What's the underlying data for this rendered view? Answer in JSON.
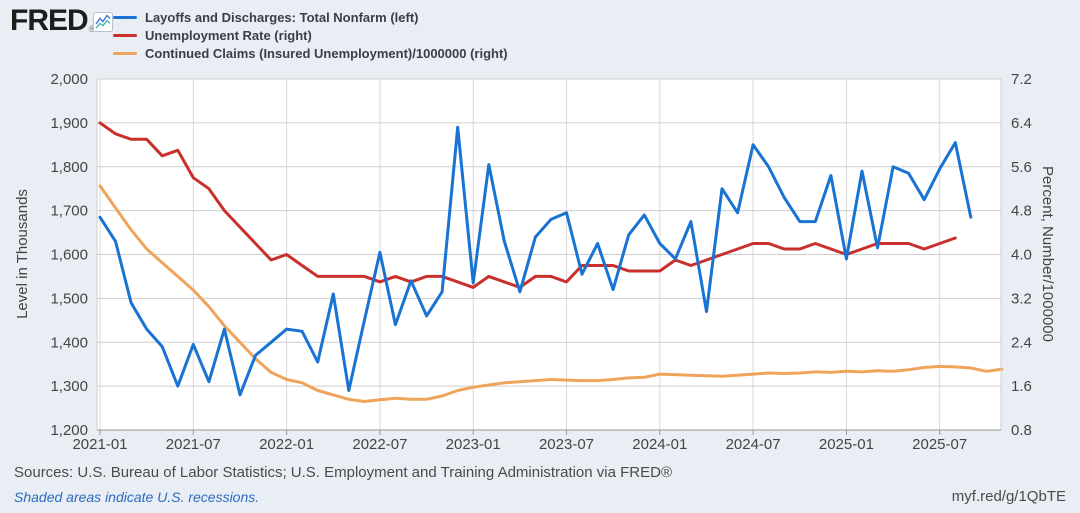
{
  "header": {
    "logo_text": "FRED",
    "logo_reg": "®",
    "logo_icon": "mini-line-chart-icon"
  },
  "chart_data": {
    "type": "line",
    "x_unit": "month",
    "x_start": "2021-01",
    "grid": true,
    "legend_position": "top",
    "x_tick_labels": [
      "2021-01",
      "2021-07",
      "2022-01",
      "2022-07",
      "2023-01",
      "2023-07",
      "2024-01",
      "2024-07",
      "2025-01",
      "2025-07"
    ],
    "left_axis": {
      "title": "Level in Thousands",
      "min": 1200,
      "max": 2000,
      "tick_labels": [
        "2,000",
        "1,900",
        "1,800",
        "1,700",
        "1,600",
        "1,500",
        "1,400",
        "1,300",
        "1,200"
      ]
    },
    "right_axis": {
      "title": "Percent, Number/1000000",
      "min": 0.8,
      "max": 7.2,
      "tick_labels": [
        "7.2",
        "6.4",
        "5.6",
        "4.8",
        "4.0",
        "3.2",
        "2.4",
        "1.6",
        "0.8"
      ]
    },
    "series": [
      {
        "id": "layoffs",
        "name": "Layoffs and Discharges: Total Nonfarm (left)",
        "axis": "left",
        "color": "#1873d3",
        "start": "2021-01",
        "values": [
          1685,
          1630,
          1490,
          1430,
          1390,
          1300,
          1395,
          1310,
          1430,
          1280,
          1370,
          1400,
          1430,
          1425,
          1355,
          1510,
          1290,
          1450,
          1605,
          1440,
          1540,
          1460,
          1515,
          1890,
          1535,
          1805,
          1630,
          1515,
          1640,
          1680,
          1695,
          1555,
          1625,
          1520,
          1645,
          1690,
          1625,
          1590,
          1675,
          1470,
          1750,
          1695,
          1850,
          1800,
          1730,
          1675,
          1675,
          1780,
          1590,
          1790,
          1615,
          1800,
          1785,
          1725,
          1795,
          1855,
          1685
        ]
      },
      {
        "id": "unemployment-rate",
        "name": "Unemployment Rate (right)",
        "axis": "right",
        "color": "#c9302c",
        "start": "2021-01",
        "values": [
          6.4,
          6.2,
          6.1,
          6.1,
          5.8,
          5.9,
          5.4,
          5.2,
          4.8,
          4.5,
          4.2,
          3.9,
          4.0,
          3.8,
          3.6,
          3.6,
          3.6,
          3.6,
          3.5,
          3.6,
          3.5,
          3.6,
          3.6,
          3.5,
          3.4,
          3.6,
          3.5,
          3.4,
          3.6,
          3.6,
          3.5,
          3.8,
          3.8,
          3.8,
          3.7,
          3.7,
          3.7,
          3.9,
          3.8,
          3.9,
          4.0,
          4.1,
          4.2,
          4.2,
          4.1,
          4.1,
          4.2,
          4.1,
          4.0,
          4.1,
          4.2,
          4.2,
          4.2,
          4.1,
          4.2,
          4.3
        ]
      },
      {
        "id": "continued-claims",
        "name": "Continued Claims (Insured Unemployment)/1000000 (right)",
        "axis": "right",
        "color": "#efa45c",
        "start": "2021-01",
        "values": [
          5.25,
          4.85,
          4.45,
          4.1,
          3.85,
          3.6,
          3.35,
          3.05,
          2.7,
          2.4,
          2.1,
          1.85,
          1.72,
          1.66,
          1.52,
          1.44,
          1.36,
          1.32,
          1.35,
          1.38,
          1.36,
          1.36,
          1.42,
          1.52,
          1.58,
          1.62,
          1.66,
          1.68,
          1.7,
          1.72,
          1.71,
          1.7,
          1.7,
          1.72,
          1.75,
          1.76,
          1.82,
          1.81,
          1.8,
          1.79,
          1.78,
          1.8,
          1.82,
          1.84,
          1.83,
          1.84,
          1.86,
          1.85,
          1.87,
          1.86,
          1.88,
          1.87,
          1.9,
          1.94,
          1.96,
          1.95,
          1.93,
          1.87,
          1.91
        ]
      }
    ]
  },
  "footer": {
    "sources": "Sources: U.S. Bureau of Labor Statistics; U.S. Employment and Training Administration via FRED®",
    "recessions_note": "Shaded areas indicate U.S. recessions.",
    "permalink": "myf.red/g/1QbTE"
  },
  "colors": {
    "page_background": "#e9eef5",
    "plot_background": "#ffffff",
    "gridline": "#cfcfcf",
    "vertical_gridline": "#d8d8d8",
    "axis_line": "#999999",
    "tick_text": "#444444",
    "link": "#2d6bc0"
  }
}
